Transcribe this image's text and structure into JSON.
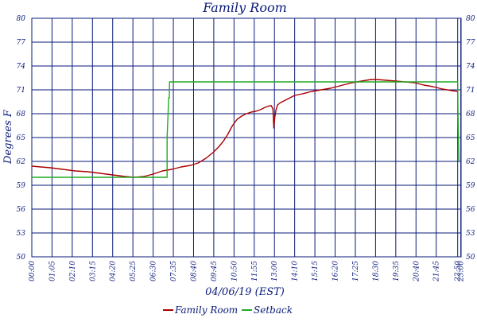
{
  "chart_data": {
    "type": "line",
    "title": "Family Room",
    "xlabel": "04/06/19 (EST)",
    "ylabel": "Degrees F",
    "ylim": [
      50,
      80
    ],
    "y_ticks": [
      "80",
      "77",
      "74",
      "71",
      "68",
      "65",
      "62",
      "59",
      "56",
      "53",
      "50"
    ],
    "x_ticks": [
      {
        "minutes": 0,
        "label": "00:00"
      },
      {
        "minutes": 65,
        "label": "01:05"
      },
      {
        "minutes": 130,
        "label": "02:10"
      },
      {
        "minutes": 195,
        "label": "03:15"
      },
      {
        "minutes": 260,
        "label": "04:20"
      },
      {
        "minutes": 325,
        "label": "05:25"
      },
      {
        "minutes": 390,
        "label": "06:30"
      },
      {
        "minutes": 455,
        "label": "07:35"
      },
      {
        "minutes": 520,
        "label": "08:40"
      },
      {
        "minutes": 585,
        "label": "09:45"
      },
      {
        "minutes": 650,
        "label": "10:50"
      },
      {
        "minutes": 715,
        "label": "11:55"
      },
      {
        "minutes": 780,
        "label": "13:00"
      },
      {
        "minutes": 845,
        "label": "14:10"
      },
      {
        "minutes": 910,
        "label": "15:15"
      },
      {
        "minutes": 975,
        "label": "16:20"
      },
      {
        "minutes": 1040,
        "label": "17:25"
      },
      {
        "minutes": 1105,
        "label": "18:30"
      },
      {
        "minutes": 1170,
        "label": "19:35"
      },
      {
        "minutes": 1235,
        "label": "20:40"
      },
      {
        "minutes": 1300,
        "label": "21:45"
      },
      {
        "minutes": 1369,
        "label": "22:50"
      },
      {
        "minutes": 1379,
        "label": "23:00"
      }
    ],
    "grid": true,
    "legend_position": "bottom",
    "series": [
      {
        "name": "Family Room",
        "color": "#aa0000",
        "points": [
          [
            0,
            61.4
          ],
          [
            30,
            61.3
          ],
          [
            60,
            61.2
          ],
          [
            100,
            61.0
          ],
          [
            140,
            60.8
          ],
          [
            180,
            60.7
          ],
          [
            220,
            60.5
          ],
          [
            260,
            60.3
          ],
          [
            300,
            60.1
          ],
          [
            330,
            60.0
          ],
          [
            360,
            60.1
          ],
          [
            390,
            60.4
          ],
          [
            420,
            60.8
          ],
          [
            450,
            61.0
          ],
          [
            480,
            61.3
          ],
          [
            510,
            61.5
          ],
          [
            535,
            61.8
          ],
          [
            560,
            62.4
          ],
          [
            585,
            63.2
          ],
          [
            600,
            63.8
          ],
          [
            615,
            64.5
          ],
          [
            630,
            65.4
          ],
          [
            645,
            66.5
          ],
          [
            660,
            67.3
          ],
          [
            675,
            67.7
          ],
          [
            690,
            68.0
          ],
          [
            705,
            68.2
          ],
          [
            720,
            68.3
          ],
          [
            735,
            68.5
          ],
          [
            750,
            68.8
          ],
          [
            765,
            69.0
          ],
          [
            770,
            69.0
          ],
          [
            775,
            68.6
          ],
          [
            778,
            66.2
          ],
          [
            781,
            67.5
          ],
          [
            785,
            68.5
          ],
          [
            790,
            69.1
          ],
          [
            800,
            69.4
          ],
          [
            820,
            69.8
          ],
          [
            845,
            70.3
          ],
          [
            870,
            70.5
          ],
          [
            900,
            70.8
          ],
          [
            930,
            71.0
          ],
          [
            960,
            71.2
          ],
          [
            980,
            71.4
          ],
          [
            1000,
            71.6
          ],
          [
            1030,
            71.9
          ],
          [
            1060,
            72.1
          ],
          [
            1090,
            72.3
          ],
          [
            1110,
            72.3
          ],
          [
            1140,
            72.2
          ],
          [
            1170,
            72.1
          ],
          [
            1200,
            72.0
          ],
          [
            1230,
            71.9
          ],
          [
            1260,
            71.6
          ],
          [
            1290,
            71.4
          ],
          [
            1320,
            71.1
          ],
          [
            1350,
            70.9
          ],
          [
            1370,
            70.8
          ]
        ]
      },
      {
        "name": "Setback",
        "color": "#22aa22",
        "points": [
          [
            0,
            60.0
          ],
          [
            435,
            60.0
          ],
          [
            435,
            65.0
          ],
          [
            440,
            70.0
          ],
          [
            442,
            70.0
          ],
          [
            443,
            72.0
          ],
          [
            1369,
            72.0
          ],
          [
            1370,
            68.0
          ],
          [
            1373,
            62.0
          ]
        ]
      }
    ]
  }
}
